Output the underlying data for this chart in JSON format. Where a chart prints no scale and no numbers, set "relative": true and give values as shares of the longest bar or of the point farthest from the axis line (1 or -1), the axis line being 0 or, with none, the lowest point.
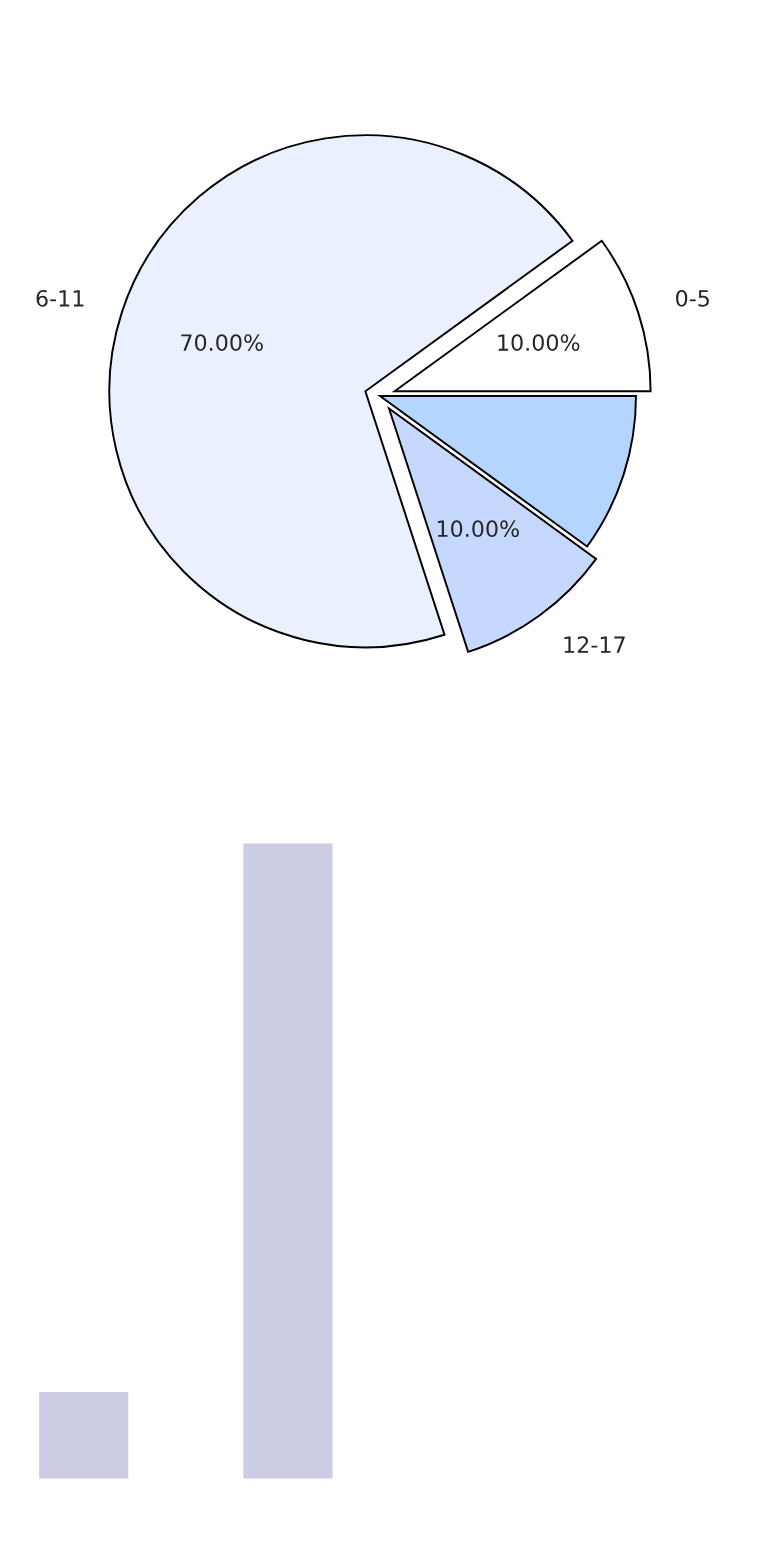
{
  "chart_data": [
    {
      "type": "pie",
      "categories": [
        "0-5",
        "6-11",
        "12-17",
        null
      ],
      "values": [
        10,
        70,
        10,
        10
      ],
      "colors": [
        "#ffffff",
        "#eaf0fe",
        "#c6d8fe",
        "#b3d5fe"
      ],
      "value_labels": [
        "10.00%",
        "70.00%",
        "10.00%",
        null
      ]
    },
    {
      "type": "bar",
      "relative": true,
      "categories": [
        null,
        null
      ],
      "values": [
        0.14,
        1
      ],
      "color": "#cccce4"
    }
  ]
}
